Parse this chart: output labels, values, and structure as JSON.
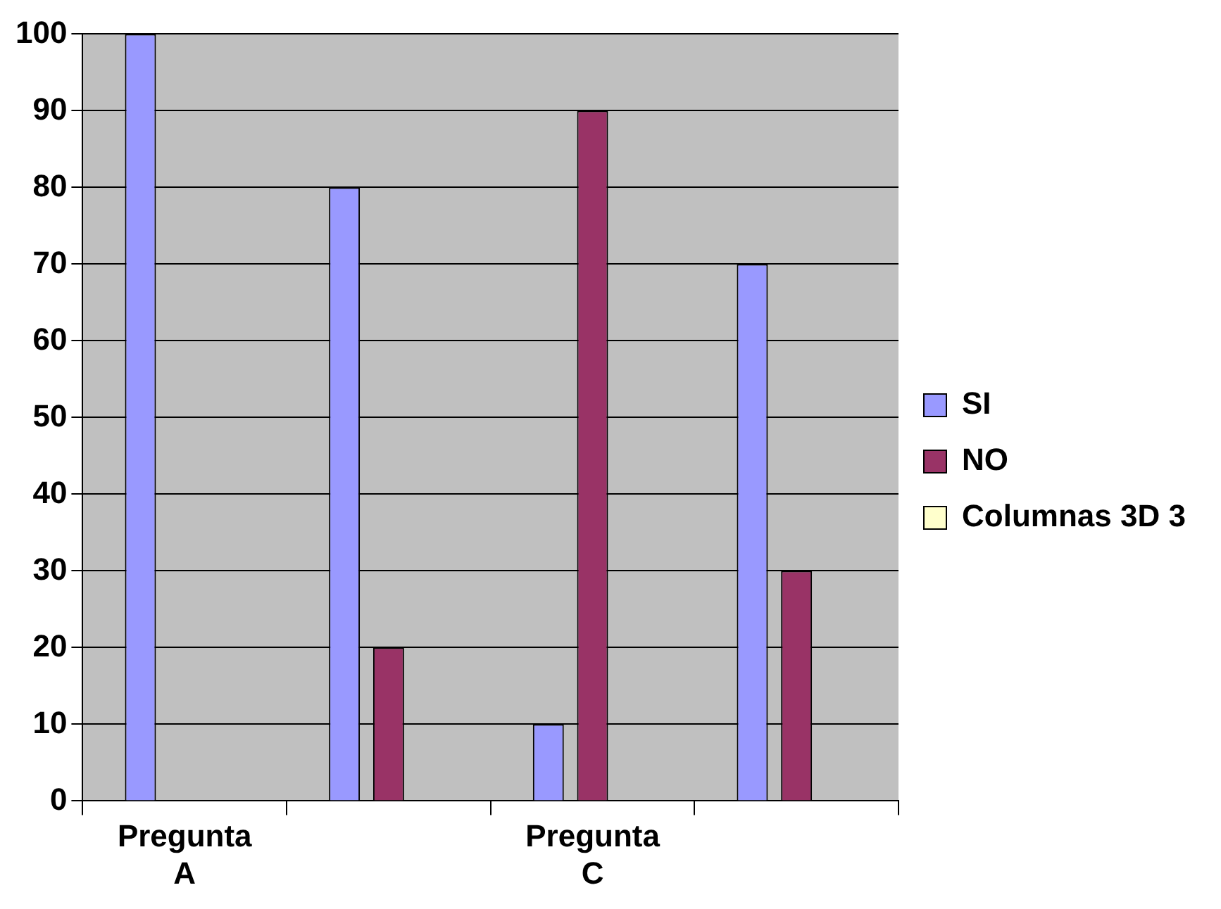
{
  "chart_data": {
    "type": "bar",
    "categories": [
      "Pregunta A",
      null,
      "Pregunta C",
      null
    ],
    "series": [
      {
        "name": "SI",
        "color": "#9999ff",
        "values": [
          100,
          80,
          10,
          70
        ]
      },
      {
        "name": "NO",
        "color": "#993366",
        "values": [
          0,
          20,
          90,
          30
        ]
      },
      {
        "name": "Columnas 3D 3",
        "color": "#ffffcc",
        "values": [
          null,
          null,
          null,
          null
        ]
      }
    ],
    "ylim": [
      0,
      100
    ],
    "yticks": [
      0,
      10,
      20,
      30,
      40,
      50,
      60,
      70,
      80,
      90,
      100
    ],
    "grid": "y",
    "legend": "right"
  }
}
